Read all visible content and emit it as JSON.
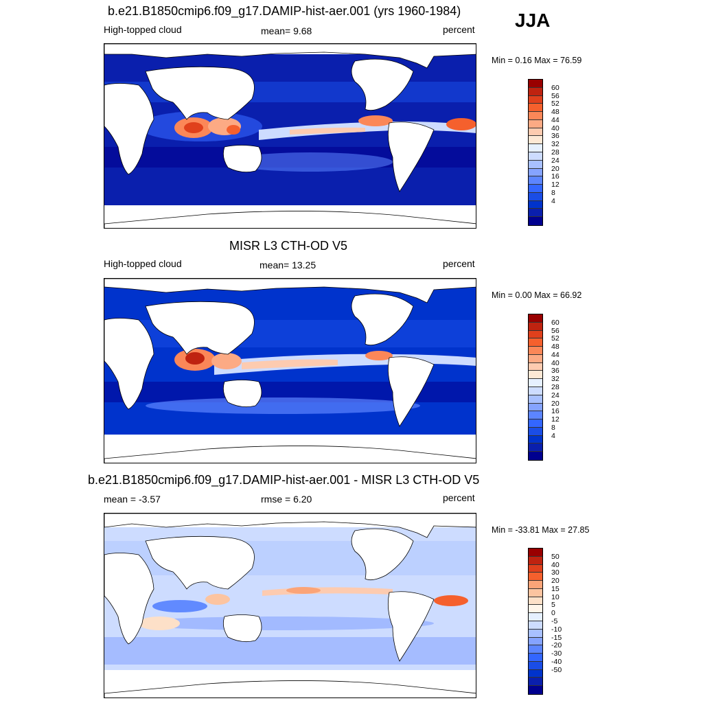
{
  "season": "JJA",
  "panels": [
    {
      "id": "model",
      "title": "b.e21.B1850cmip6.f09_g17.DAMIP-hist-aer.001 (yrs 1960-1984)",
      "left_label": "High-topped cloud",
      "center_label": "mean=   9.68",
      "units": "percent",
      "minmax": "Min =   0.16 Max =  76.59",
      "palette": [
        "#00008f",
        "#0a1fad",
        "#0033cc",
        "#1a4de6",
        "#3366ff",
        "#5c85ff",
        "#85a3ff",
        "#a8c0ff",
        "#cddcff",
        "#e6f0ff",
        "#fde8d5",
        "#fdcbb0",
        "#fcaa84",
        "#fb8758",
        "#f5602d",
        "#e0401c",
        "#bf2310",
        "#990000"
      ],
      "labels": [
        "60",
        "56",
        "52",
        "48",
        "44",
        "40",
        "36",
        "32",
        "28",
        "24",
        "20",
        "16",
        "12",
        "8",
        "4"
      ]
    },
    {
      "id": "obs",
      "title": "MISR L3 CTH-OD V5",
      "left_label": "High-topped cloud",
      "center_label": "mean=  13.25",
      "units": "percent",
      "minmax": "Min =   0.00 Max =  66.92",
      "palette": [
        "#00008f",
        "#0a1fad",
        "#0033cc",
        "#1a4de6",
        "#3366ff",
        "#5c85ff",
        "#85a3ff",
        "#a8c0ff",
        "#cddcff",
        "#e6f0ff",
        "#fde8d5",
        "#fdcbb0",
        "#fcaa84",
        "#fb8758",
        "#f5602d",
        "#e0401c",
        "#bf2310",
        "#990000"
      ],
      "labels": [
        "60",
        "56",
        "52",
        "48",
        "44",
        "40",
        "36",
        "32",
        "28",
        "24",
        "20",
        "16",
        "12",
        "8",
        "4"
      ]
    },
    {
      "id": "diff",
      "title": "b.e21.B1850cmip6.f09_g17.DAMIP-hist-aer.001 - MISR L3 CTH-OD V5",
      "left_label": "mean =  -3.57",
      "center_label": "rmse =   6.20",
      "units": "percent",
      "minmax": "Min = -33.81 Max =  27.85",
      "palette": [
        "#00008f",
        "#0a1fad",
        "#0033cc",
        "#1a4de6",
        "#3366ff",
        "#5c85ff",
        "#85a3ff",
        "#a8c0ff",
        "#cddcff",
        "#e6f0ff",
        "#fff5ea",
        "#fde0c8",
        "#fcc4a0",
        "#fba478",
        "#f5602d",
        "#e0401c",
        "#bf2310",
        "#990000"
      ],
      "labels": [
        "50",
        "40",
        "30",
        "20",
        "15",
        "10",
        "5",
        "0",
        "-5",
        "-10",
        "-15",
        "-20",
        "-30",
        "-40",
        "-50"
      ]
    }
  ]
}
